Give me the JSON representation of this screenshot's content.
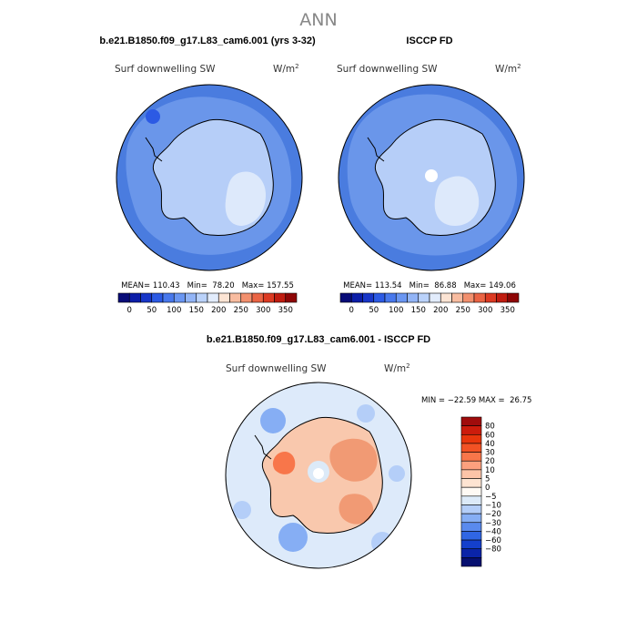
{
  "figure": {
    "title": "ANN"
  },
  "chart_data": [
    {
      "type": "heatmap",
      "panel": "model",
      "title": "b.e21.B1850.f09_g17.L83_cam6.001 (yrs 3-32)",
      "left_label": "Surf downwelling SW",
      "units_base": "W/m",
      "units_exp": "2",
      "projection": "south-polar-stereographic",
      "stats": {
        "mean": "110.43",
        "min": "78.20",
        "max": "157.55"
      },
      "stats_text": "MEAN= 110.43   Min=  78.20   Max= 157.55",
      "colorbar_ticks": [
        "0",
        "50",
        "100",
        "150",
        "200",
        "250",
        "300",
        "350"
      ],
      "colorbar_colors": [
        "#080c78",
        "#0c1ea8",
        "#1836c8",
        "#2c5ae4",
        "#4878ec",
        "#6a96f2",
        "#92b4f6",
        "#bad2fa",
        "#e2ecfc",
        "#fce4d4",
        "#f8bca0",
        "#f2906e",
        "#ea6444",
        "#dc3a22",
        "#c01c10",
        "#8e0606"
      ]
    },
    {
      "type": "heatmap",
      "panel": "obs",
      "title": "ISCCP FD",
      "left_label": "Surf downwelling SW",
      "units_base": "W/m",
      "units_exp": "2",
      "projection": "south-polar-stereographic",
      "stats": {
        "mean": "113.54",
        "min": "86.88",
        "max": "149.06"
      },
      "stats_text": "MEAN= 113.54   Min=  86.88   Max= 149.06",
      "colorbar_ticks": [
        "0",
        "50",
        "100",
        "150",
        "200",
        "250",
        "300",
        "350"
      ],
      "colorbar_colors": [
        "#080c78",
        "#0c1ea8",
        "#1836c8",
        "#2c5ae4",
        "#4878ec",
        "#6a96f2",
        "#92b4f6",
        "#bad2fa",
        "#e2ecfc",
        "#fce4d4",
        "#f8bca0",
        "#f2906e",
        "#ea6444",
        "#dc3a22",
        "#c01c10",
        "#8e0606"
      ]
    },
    {
      "type": "heatmap",
      "panel": "difference",
      "title": "b.e21.B1850.f09_g17.L83_cam6.001 - ISCCP FD",
      "left_label": "Surf downwelling SW",
      "units_base": "W/m",
      "units_exp": "2",
      "projection": "south-polar-stereographic",
      "stats": {
        "min": "-22.59",
        "max": "26.75"
      },
      "stats_text": "MIN = −22.59 MAX =  26.75",
      "colorbar_ticks": [
        "80",
        "60",
        "40",
        "30",
        "20",
        "10",
        "5",
        "0",
        "−5",
        "−10",
        "−20",
        "−30",
        "−40",
        "−60",
        "−80"
      ],
      "colorbar_colors": [
        "#a00c0c",
        "#cc1c0c",
        "#e8360c",
        "#f25224",
        "#f8764a",
        "#fca07e",
        "#fcc4a8",
        "#fde4d2",
        "#fefaf4",
        "#dceaf8",
        "#b4cef8",
        "#86aef4",
        "#5a8aee",
        "#3066e4",
        "#1440cc",
        "#0a24a8",
        "#061070"
      ]
    }
  ],
  "colors": {
    "ocean_deep": "#4a7cdf",
    "ocean_mid": "#6a96ea",
    "land_light": "#b6cef8",
    "land_pale": "#dde9fb",
    "diff_base": "#ddeafa",
    "diff_warm": "#f9c8ad",
    "diff_hot": "#f19a74"
  }
}
